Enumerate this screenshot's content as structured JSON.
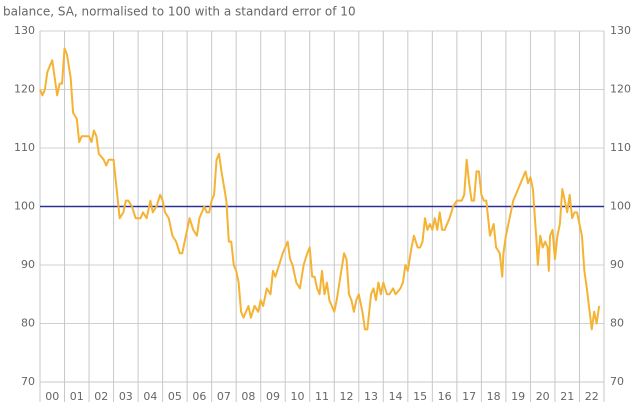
{
  "chart_data": {
    "type": "line",
    "title": "balance, SA, normalised to 100 with a standard error of 10",
    "xlim": [
      0,
      23
    ],
    "xticks": [
      {
        "value": 0,
        "label": "00"
      },
      {
        "value": 1,
        "label": "01"
      },
      {
        "value": 2,
        "label": "02"
      },
      {
        "value": 3,
        "label": "03"
      },
      {
        "value": 4,
        "label": "04"
      },
      {
        "value": 5,
        "label": "05"
      },
      {
        "value": 6,
        "label": "06"
      },
      {
        "value": 7,
        "label": "07"
      },
      {
        "value": 8,
        "label": "08"
      },
      {
        "value": 9,
        "label": "09"
      },
      {
        "value": 10,
        "label": "10"
      },
      {
        "value": 11,
        "label": "11"
      },
      {
        "value": 12,
        "label": "12"
      },
      {
        "value": 13,
        "label": "13"
      },
      {
        "value": 14,
        "label": "14"
      },
      {
        "value": 15,
        "label": "15"
      },
      {
        "value": 16,
        "label": "16"
      },
      {
        "value": 17,
        "label": "17"
      },
      {
        "value": 18,
        "label": "18"
      },
      {
        "value": 19,
        "label": "19"
      },
      {
        "value": 20,
        "label": "20"
      },
      {
        "value": 21,
        "label": "21"
      },
      {
        "value": 22,
        "label": "22"
      }
    ],
    "ylim": [
      70,
      130
    ],
    "yticks": [
      70,
      80,
      90,
      100,
      110,
      120,
      130
    ],
    "grid": true,
    "y_labels_both_sides": true,
    "reference_line": {
      "value": 100,
      "color": "#2e3192"
    },
    "x": [
      0.0,
      0.1,
      0.2,
      0.3,
      0.5,
      0.6,
      0.7,
      0.8,
      0.9,
      1.0,
      1.1,
      1.25,
      1.35,
      1.5,
      1.6,
      1.7,
      1.9,
      2.0,
      2.1,
      2.2,
      2.3,
      2.4,
      2.6,
      2.7,
      2.8,
      3.0,
      3.1,
      3.25,
      3.4,
      3.5,
      3.6,
      3.75,
      3.9,
      4.1,
      4.2,
      4.35,
      4.5,
      4.6,
      4.75,
      4.9,
      5.0,
      5.1,
      5.25,
      5.4,
      5.55,
      5.7,
      5.8,
      5.9,
      6.0,
      6.1,
      6.25,
      6.4,
      6.5,
      6.7,
      6.8,
      6.9,
      7.0,
      7.1,
      7.2,
      7.3,
      7.4,
      7.6,
      7.7,
      7.8,
      7.9,
      8.0,
      8.1,
      8.2,
      8.3,
      8.4,
      8.5,
      8.6,
      8.75,
      8.9,
      9.0,
      9.1,
      9.25,
      9.4,
      9.5,
      9.6,
      9.75,
      9.9,
      10.0,
      10.1,
      10.2,
      10.3,
      10.45,
      10.6,
      10.75,
      10.9,
      11.0,
      11.1,
      11.2,
      11.3,
      11.4,
      11.5,
      11.6,
      11.7,
      11.8,
      11.9,
      12.0,
      12.1,
      12.25,
      12.4,
      12.5,
      12.6,
      12.7,
      12.8,
      12.9,
      13.0,
      13.15,
      13.25,
      13.35,
      13.5,
      13.6,
      13.7,
      13.8,
      13.9,
      14.0,
      14.15,
      14.25,
      14.4,
      14.5,
      14.7,
      14.8,
      14.9,
      15.0,
      15.15,
      15.25,
      15.4,
      15.5,
      15.6,
      15.7,
      15.8,
      15.9,
      16.0,
      16.1,
      16.2,
      16.3,
      16.4,
      16.5,
      16.7,
      16.85,
      17.0,
      17.2,
      17.3,
      17.4,
      17.5,
      17.6,
      17.7,
      17.8,
      17.9,
      18.0,
      18.1,
      18.2,
      18.35,
      18.5,
      18.6,
      18.75,
      18.85,
      18.9,
      19.0,
      19.15,
      19.3,
      19.5,
      19.7,
      19.8,
      19.9,
      20.0,
      20.1,
      20.25,
      20.3,
      20.4,
      20.5,
      20.6,
      20.7,
      20.75,
      20.8,
      20.9,
      21.0,
      21.1,
      21.2,
      21.3,
      21.4,
      21.5,
      21.6,
      21.7,
      21.8,
      21.9,
      22.0,
      22.1,
      22.2,
      22.3,
      22.5,
      22.6,
      22.7,
      22.8
    ],
    "series": [
      {
        "color": "#f5b335",
        "values": [
          120,
          119,
          120,
          123,
          125,
          122,
          119,
          121,
          121,
          127,
          126,
          122,
          116,
          115,
          111,
          112,
          112,
          112,
          111,
          113,
          112,
          109,
          108,
          107,
          108,
          108,
          104,
          98,
          99,
          101,
          101,
          100,
          98,
          98,
          99,
          98,
          101,
          99,
          100,
          102,
          101,
          99,
          98,
          95,
          94,
          92,
          92,
          94,
          96,
          98,
          96,
          95,
          98,
          100,
          99,
          99,
          101,
          102,
          108,
          109,
          106,
          101,
          94,
          94,
          90,
          89,
          87,
          82,
          81,
          82,
          83,
          81,
          83,
          82,
          84,
          83,
          86,
          85,
          89,
          88,
          90,
          92,
          93,
          94,
          91,
          90,
          87,
          86,
          90,
          92,
          93,
          88,
          88,
          86,
          85,
          89,
          85,
          87,
          84,
          83,
          82,
          84,
          88,
          92,
          91,
          85,
          84,
          82,
          84,
          85,
          82,
          79,
          79,
          85,
          86,
          84,
          87,
          85,
          87,
          85,
          85,
          86,
          85,
          86,
          87,
          90,
          89,
          93,
          95,
          93,
          93,
          94,
          98,
          96,
          97,
          96,
          98,
          96,
          99,
          96,
          96,
          98,
          100,
          101,
          101,
          102,
          108,
          104,
          101,
          101,
          106,
          106,
          102,
          101,
          101,
          95,
          97,
          93,
          92,
          88,
          92,
          95,
          98,
          101,
          103,
          105,
          106,
          104,
          105,
          103,
          94,
          90,
          95,
          93,
          94,
          93,
          89,
          95,
          96,
          91,
          95,
          97,
          103,
          101,
          99,
          102,
          98,
          99,
          99,
          97,
          95,
          89,
          86,
          79,
          82,
          80,
          83
        ]
      }
    ]
  }
}
